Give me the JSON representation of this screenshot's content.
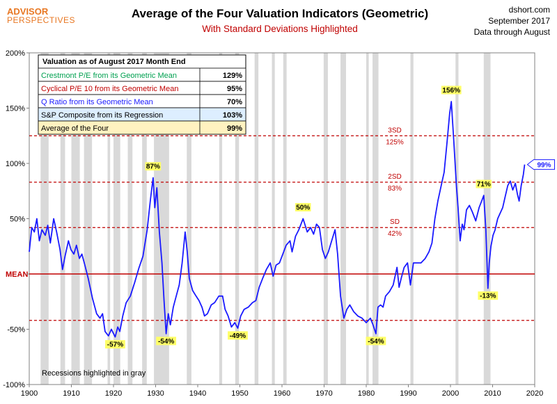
{
  "logo": {
    "line1": "ADVISOR",
    "line2": "PERSPECTIVES"
  },
  "header": {
    "title": "Average of the Four Valuation Indicators (Geometric)",
    "subtitle": "With Standard Deviations Highlighted",
    "source": "dshort.com",
    "date": "September 2017",
    "data_through": "Data through August"
  },
  "colors": {
    "line": "#1a1aff",
    "reference": "#c00000",
    "recession": "#d9d9d9",
    "label_bg": "#ffff66",
    "crestmont": "#00a050",
    "cyclical": "#c00000",
    "qratio": "#1a1aff",
    "sp": "#000000",
    "sp_row_bg": "#ddeeff",
    "avg_row_bg": "#fff2c0"
  },
  "table": {
    "header": "Valuation as of August 2017  Month End",
    "rows": [
      {
        "label": "Crestmont P/E from its Geometric Mean",
        "value": "129%",
        "color_key": "crestmont"
      },
      {
        "label": "Cyclical P/E 10 from its Geometric Mean",
        "value": "95%",
        "color_key": "cyclical"
      },
      {
        "label": "Q Ratio from its Geometric Mean",
        "value": "70%",
        "color_key": "qratio"
      },
      {
        "label": "S&P Composite from its Regression",
        "value": "103%",
        "color_key": "sp"
      },
      {
        "label": "Average of the Four",
        "value": "99%",
        "color_key": "sp"
      }
    ]
  },
  "note": "Recessions highlighted in gray",
  "chart_data": {
    "type": "line",
    "title": "Average of the Four Valuation Indicators (Geometric)",
    "subtitle": "With Standard Deviations Highlighted",
    "xlim": [
      1900,
      2020
    ],
    "ylim": [
      -100,
      200
    ],
    "x_ticks": [
      1900,
      1910,
      1920,
      1930,
      1940,
      1950,
      1960,
      1970,
      1980,
      1990,
      2000,
      2010,
      2020
    ],
    "y_ticks": [
      -100,
      -50,
      0,
      50,
      100,
      150,
      200
    ],
    "y_tick_labels": [
      "-100%",
      "-50%",
      "",
      "50%",
      "100%",
      "150%",
      "200%"
    ],
    "reference_lines": [
      {
        "value": 0,
        "label": "MEAN",
        "style": "solid"
      },
      {
        "value": 42,
        "label": "SD",
        "sublabel": "42%",
        "style": "dashed"
      },
      {
        "value": 83,
        "label": "2SD",
        "sublabel": "83%",
        "style": "dashed"
      },
      {
        "value": 125,
        "label": "3SD",
        "sublabel": "125%",
        "style": "dashed"
      },
      {
        "value": -42,
        "label": "",
        "sublabel": "",
        "style": "dashed"
      }
    ],
    "recessions": [
      [
        1902.7,
        1904.6
      ],
      [
        1907.4,
        1908.5
      ],
      [
        1910.0,
        1912.0
      ],
      [
        1913.0,
        1914.9
      ],
      [
        1918.6,
        1919.2
      ],
      [
        1920.0,
        1921.6
      ],
      [
        1923.4,
        1924.5
      ],
      [
        1926.8,
        1927.9
      ],
      [
        1929.6,
        1933.2
      ],
      [
        1937.4,
        1938.5
      ],
      [
        1945.1,
        1945.8
      ],
      [
        1948.9,
        1949.8
      ],
      [
        1953.5,
        1954.4
      ],
      [
        1957.6,
        1958.3
      ],
      [
        1960.3,
        1961.1
      ],
      [
        1969.9,
        1970.9
      ],
      [
        1973.9,
        1975.2
      ],
      [
        1980.0,
        1980.6
      ],
      [
        1981.5,
        1982.9
      ],
      [
        1990.5,
        1991.2
      ],
      [
        2001.2,
        2001.9
      ],
      [
        2007.9,
        2009.5
      ]
    ],
    "series": [
      {
        "name": "Average of the Four",
        "x": [
          1900.0,
          1900.6,
          1901.2,
          1901.8,
          1902.4,
          1903.0,
          1903.8,
          1904.4,
          1905.0,
          1905.8,
          1906.5,
          1907.3,
          1907.9,
          1908.5,
          1909.3,
          1909.9,
          1910.6,
          1911.2,
          1911.9,
          1912.5,
          1913.2,
          1914.0,
          1915.0,
          1916.0,
          1916.8,
          1917.4,
          1918.0,
          1918.8,
          1919.5,
          1920.4,
          1921.0,
          1921.5,
          1922.2,
          1923.0,
          1924.0,
          1925.0,
          1926.0,
          1927.0,
          1928.0,
          1928.8,
          1929.4,
          1929.8,
          1930.3,
          1930.9,
          1931.5,
          1932.0,
          1932.5,
          1933.0,
          1933.5,
          1934.2,
          1934.9,
          1935.6,
          1936.3,
          1937.0,
          1937.5,
          1938.0,
          1938.8,
          1939.6,
          1940.3,
          1941.0,
          1941.6,
          1942.3,
          1943.2,
          1944.0,
          1945.0,
          1945.9,
          1946.5,
          1947.2,
          1948.0,
          1948.8,
          1949.5,
          1950.2,
          1951.0,
          1952.0,
          1953.0,
          1953.8,
          1954.6,
          1955.4,
          1956.3,
          1957.2,
          1957.9,
          1958.6,
          1959.4,
          1960.2,
          1961.0,
          1961.9,
          1962.4,
          1963.2,
          1964.0,
          1965.0,
          1966.0,
          1966.8,
          1967.5,
          1968.2,
          1968.9,
          1969.6,
          1970.3,
          1971.0,
          1971.8,
          1972.6,
          1973.2,
          1973.9,
          1974.7,
          1975.4,
          1976.1,
          1977.0,
          1978.0,
          1979.0,
          1980.0,
          1981.0,
          1981.6,
          1982.3,
          1982.8,
          1983.4,
          1984.0,
          1984.6,
          1985.5,
          1986.4,
          1987.3,
          1987.8,
          1988.3,
          1989.0,
          1989.8,
          1990.5,
          1991.2,
          1992.0,
          1993.0,
          1994.0,
          1994.9,
          1995.6,
          1996.3,
          1997.0,
          1997.8,
          1998.5,
          1999.2,
          1999.8,
          2000.2,
          2000.8,
          2001.4,
          2001.8,
          2002.3,
          2002.8,
          2003.2,
          2003.8,
          2004.5,
          2005.2,
          2006.0,
          2006.8,
          2007.4,
          2007.9,
          2008.4,
          2008.9,
          2009.2,
          2009.6,
          2010.1,
          2010.6,
          2011.2,
          2011.8,
          2012.4,
          2013.0,
          2013.6,
          2014.2,
          2014.8,
          2015.4,
          2015.9,
          2016.3,
          2016.8,
          2017.3,
          2017.6
        ],
        "values": [
          20,
          42,
          38,
          50,
          30,
          40,
          35,
          44,
          28,
          50,
          38,
          22,
          4,
          16,
          30,
          22,
          18,
          26,
          14,
          18,
          8,
          -4,
          -22,
          -36,
          -40,
          -36,
          -52,
          -56,
          -50,
          -57,
          -48,
          -52,
          -38,
          -26,
          -20,
          -8,
          5,
          16,
          40,
          68,
          87,
          60,
          78,
          38,
          10,
          -24,
          -54,
          -36,
          -46,
          -30,
          -20,
          -10,
          10,
          38,
          20,
          -4,
          -15,
          -20,
          -24,
          -30,
          -38,
          -36,
          -28,
          -26,
          -20,
          -20,
          -32,
          -38,
          -48,
          -44,
          -49,
          -38,
          -32,
          -30,
          -26,
          -24,
          -12,
          -4,
          4,
          10,
          -2,
          8,
          10,
          18,
          26,
          30,
          20,
          34,
          40,
          50,
          38,
          42,
          36,
          45,
          42,
          22,
          14,
          20,
          30,
          40,
          18,
          -20,
          -40,
          -32,
          -28,
          -34,
          -38,
          -40,
          -44,
          -40,
          -46,
          -54,
          -30,
          -28,
          -30,
          -20,
          -16,
          -10,
          6,
          -12,
          -4,
          6,
          10,
          -10,
          10,
          10,
          10,
          14,
          20,
          28,
          50,
          66,
          80,
          92,
          120,
          145,
          156,
          120,
          80,
          60,
          30,
          45,
          40,
          58,
          62,
          56,
          48,
          60,
          66,
          71,
          40,
          -13,
          10,
          25,
          35,
          40,
          50,
          55,
          60,
          70,
          80,
          84,
          76,
          82,
          72,
          66,
          80,
          90,
          99
        ]
      }
    ],
    "annotations": [
      {
        "x": 1929.4,
        "y": 87,
        "text": "87%",
        "position": "above"
      },
      {
        "x": 1920.4,
        "y": -57,
        "text": "-57%",
        "position": "below"
      },
      {
        "x": 1932.5,
        "y": -54,
        "text": "-54%",
        "position": "below"
      },
      {
        "x": 1949.5,
        "y": -49,
        "text": "-49%",
        "position": "below"
      },
      {
        "x": 1965.0,
        "y": 50,
        "text": "50%",
        "position": "above"
      },
      {
        "x": 1982.3,
        "y": -54,
        "text": "-54%",
        "position": "below"
      },
      {
        "x": 2000.2,
        "y": 156,
        "text": "156%",
        "position": "above"
      },
      {
        "x": 2007.9,
        "y": 71,
        "text": "71%",
        "position": "above"
      },
      {
        "x": 2008.9,
        "y": -13,
        "text": "-13%",
        "position": "below"
      },
      {
        "x": 2017.6,
        "y": 99,
        "text": "99%",
        "position": "callout"
      }
    ]
  }
}
